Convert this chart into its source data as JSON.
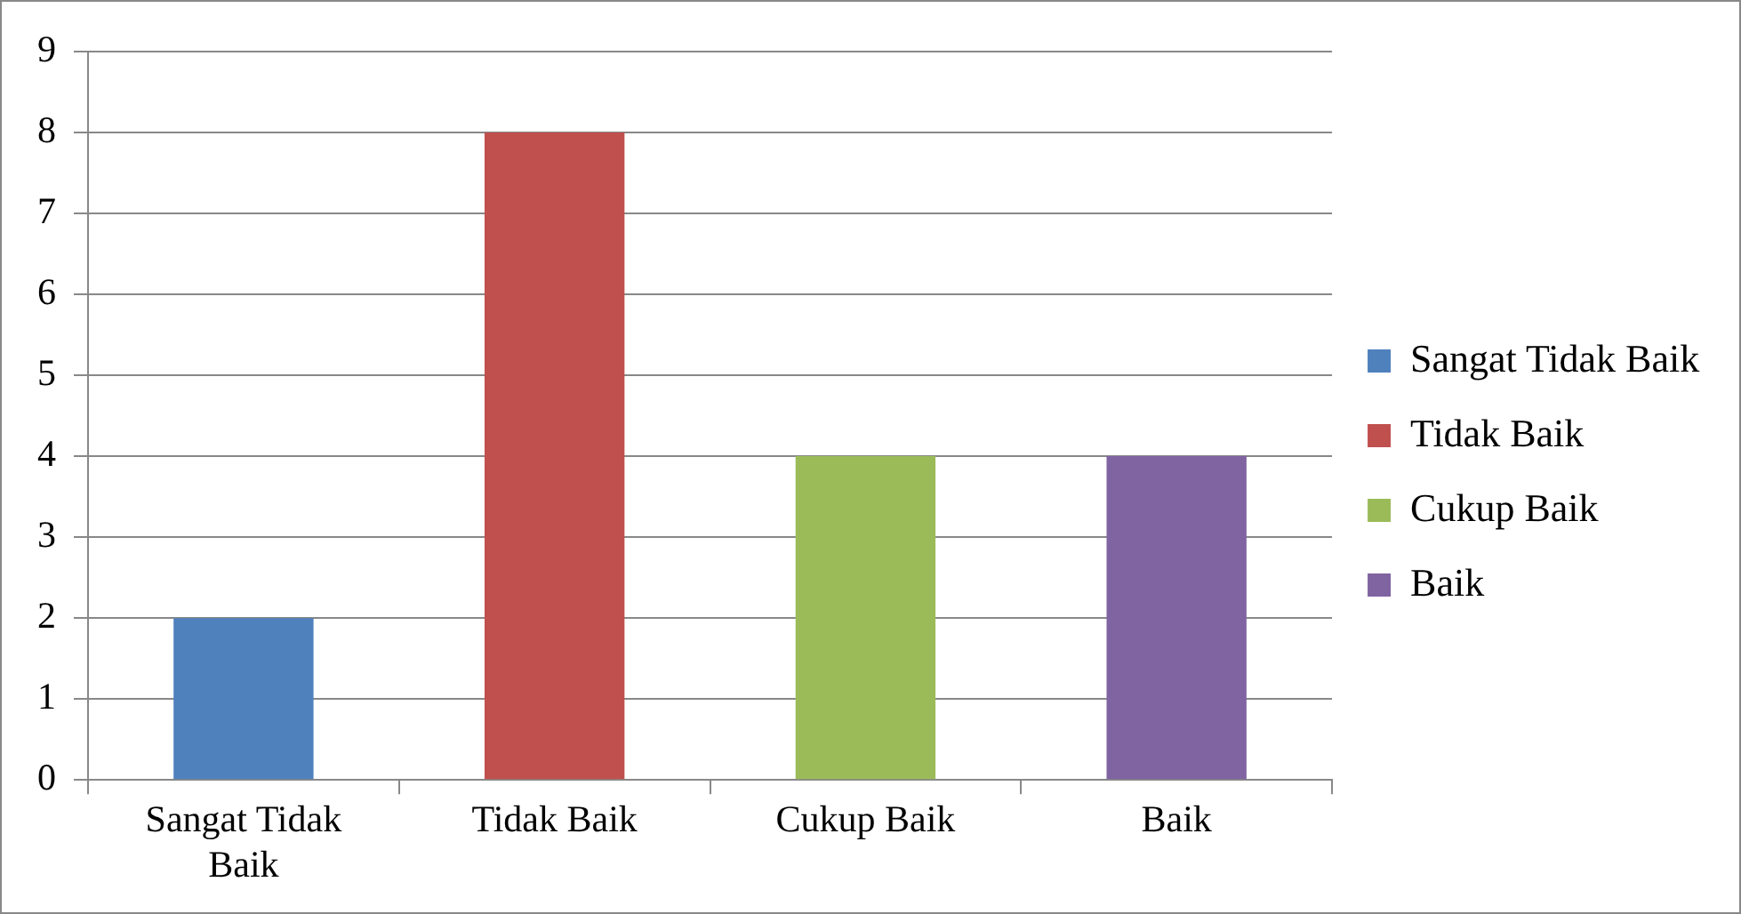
{
  "chart_data": {
    "type": "bar",
    "categories": [
      "Sangat Tidak Baik",
      "Tidak Baik",
      "Cukup Baik",
      "Baik"
    ],
    "series": [
      {
        "name": "Sangat Tidak Baik",
        "color": "#4f81bd",
        "values": [
          2,
          null,
          null,
          null
        ]
      },
      {
        "name": "Tidak Baik",
        "color": "#c0504d",
        "values": [
          null,
          8,
          null,
          null
        ]
      },
      {
        "name": "Cukup Baik",
        "color": "#9bbb59",
        "values": [
          null,
          null,
          4,
          null
        ]
      },
      {
        "name": "Baik",
        "color": "#8064a2",
        "values": [
          null,
          null,
          null,
          4
        ]
      }
    ],
    "ylim": [
      0,
      9
    ],
    "yticks": [
      0,
      1,
      2,
      3,
      4,
      5,
      6,
      7,
      8,
      9
    ],
    "grid": "y",
    "legend": "right"
  }
}
